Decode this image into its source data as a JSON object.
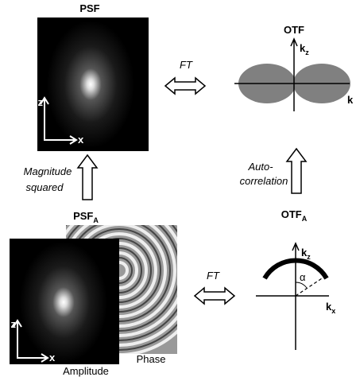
{
  "top": {
    "psf": {
      "title": "PSF",
      "axis_z": "z",
      "axis_x": "x"
    },
    "ft": "FT",
    "otf": {
      "title": "OTF",
      "kz": {
        "base": "k",
        "sub": "z"
      },
      "k": "k"
    }
  },
  "middle": {
    "left": [
      "Magnitude",
      "squared"
    ],
    "right": [
      "Auto-",
      "correlation"
    ]
  },
  "bottom": {
    "psf_a": {
      "title": {
        "base": "PSF",
        "sub": "A"
      },
      "phase": "Phase",
      "amplitude": "Amplitude",
      "axis_z": "z",
      "axis_x": "x"
    },
    "ft": "FT",
    "otf_a": {
      "title": {
        "base": "OTF",
        "sub": "A"
      },
      "kz": {
        "base": "k",
        "sub": "z"
      },
      "kx": {
        "base": "k",
        "sub": "x"
      },
      "angle": "α"
    }
  }
}
